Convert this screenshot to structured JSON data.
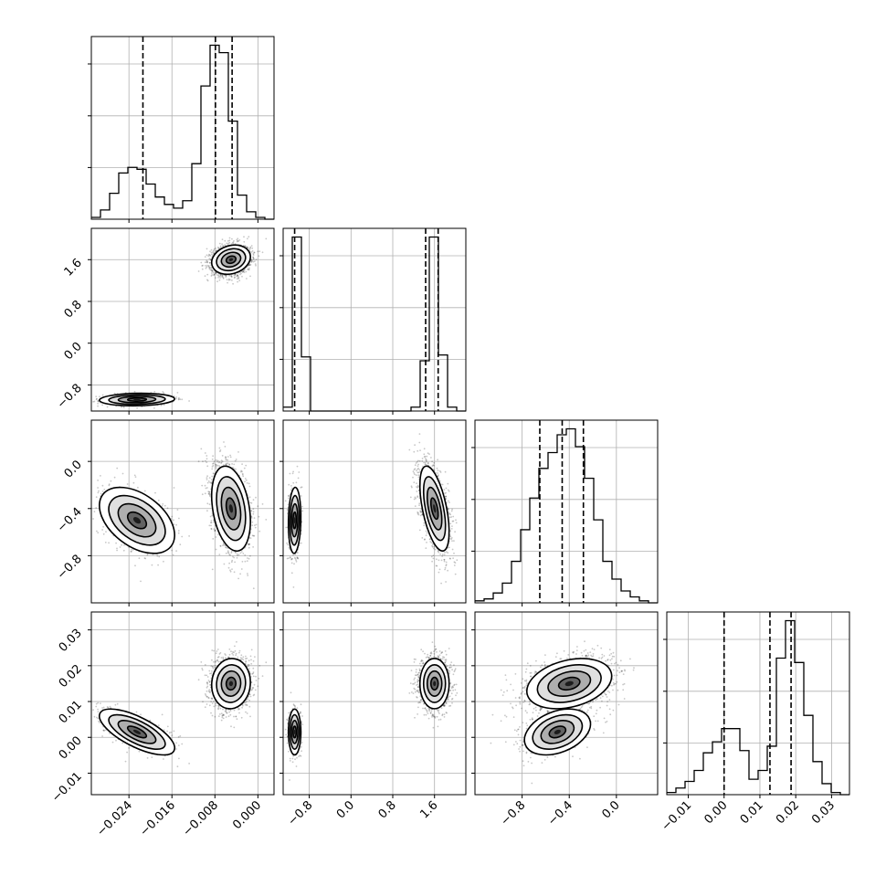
{
  "chart_data": {
    "type": "corner",
    "description_free": true,
    "ranges": [
      [
        -0.031,
        0.003
      ],
      [
        -1.3,
        2.2
      ],
      [
        -1.2,
        0.35
      ],
      [
        -0.016,
        0.035
      ]
    ],
    "ticks": [
      [
        -0.024,
        -0.016,
        -0.008,
        0.0
      ],
      [
        -0.8,
        0.0,
        0.8,
        1.6
      ],
      [
        -0.8,
        -0.4,
        0.0
      ],
      [
        -0.01,
        0.0,
        0.01,
        0.02,
        0.03
      ]
    ],
    "tick_labels": [
      [
        "−0.024",
        "−0.016",
        "−0.008",
        "0.000"
      ],
      [
        "−0.8",
        "0.0",
        "0.8",
        "1.6"
      ],
      [
        "−0.8",
        "−0.4",
        "0.0"
      ],
      [
        "−0.01",
        "0.00",
        "0.01",
        "0.02",
        "0.03"
      ]
    ],
    "histograms": [
      {
        "bin_edges": [
          -0.031,
          -0.0293,
          -0.0276,
          -0.0259,
          -0.0242,
          -0.0225,
          -0.0208,
          -0.0191,
          -0.0174,
          -0.0157,
          -0.014,
          -0.0123,
          -0.0106,
          -0.0089,
          -0.0072,
          -0.0055,
          -0.0038,
          -0.0021,
          -0.0004,
          0.0013,
          0.003
        ],
        "counts": [
          1,
          5,
          14,
          25,
          28,
          27,
          19,
          12,
          8,
          6,
          10,
          30,
          72,
          94,
          90,
          53,
          13,
          4,
          1,
          0
        ],
        "quantiles": [
          -0.0214,
          -0.0079,
          -0.0048
        ]
      },
      {
        "bin_edges": [
          -1.3,
          -1.125,
          -0.95,
          -0.775,
          -0.6,
          -0.425,
          -0.25,
          -0.075,
          0.1,
          0.275,
          0.45,
          0.625,
          0.8,
          0.975,
          1.15,
          1.325,
          1.5,
          1.675,
          1.85,
          2.025,
          2.2
        ],
        "counts": [
          2,
          90,
          28,
          0,
          0,
          0,
          0,
          0,
          0,
          0,
          0,
          0,
          0,
          0,
          2,
          26,
          90,
          29,
          2,
          0
        ],
        "quantiles": [
          -1.08,
          1.43,
          1.67
        ]
      },
      {
        "bin_edges": [
          -1.2,
          -1.1225,
          -1.045,
          -0.9675,
          -0.89,
          -0.8125,
          -0.735,
          -0.6575,
          -0.58,
          -0.5025,
          -0.425,
          -0.3475,
          -0.27,
          -0.1925,
          -0.115,
          -0.0375,
          0.04,
          0.1175,
          0.195,
          0.2725,
          0.35
        ],
        "counts": [
          1,
          2,
          5,
          10,
          21,
          37,
          53,
          68,
          76,
          85,
          88,
          79,
          63,
          42,
          21,
          12,
          6,
          3,
          1,
          0
        ],
        "quantiles": [
          -0.65,
          -0.46,
          -0.28
        ]
      },
      {
        "bin_edges": [
          -0.016,
          -0.01345,
          -0.0109,
          -0.00835,
          -0.0058,
          -0.00325,
          -0.0007,
          0.00185,
          0.0044,
          0.00695,
          0.0095,
          0.01205,
          0.0146,
          0.01715,
          0.0197,
          0.02225,
          0.0248,
          0.02735,
          0.0299,
          0.03245,
          0.035
        ],
        "counts": [
          1,
          3,
          6,
          11,
          19,
          24,
          30,
          30,
          20,
          7,
          11,
          22,
          62,
          79,
          60,
          36,
          15,
          5,
          1,
          0
        ],
        "quantiles": [
          0.0,
          0.0128,
          0.0187
        ]
      }
    ],
    "modes": [
      {
        "weight": 0.26,
        "mean": [
          -0.0225,
          -1.08,
          -0.5,
          0.0015
        ],
        "sd": [
          0.0035,
          0.06,
          0.14,
          0.0032
        ]
      },
      {
        "weight": 0.74,
        "mean": [
          -0.005,
          1.6,
          -0.4,
          0.015
        ],
        "sd": [
          0.0018,
          0.14,
          0.18,
          0.0035
        ]
      }
    ]
  }
}
